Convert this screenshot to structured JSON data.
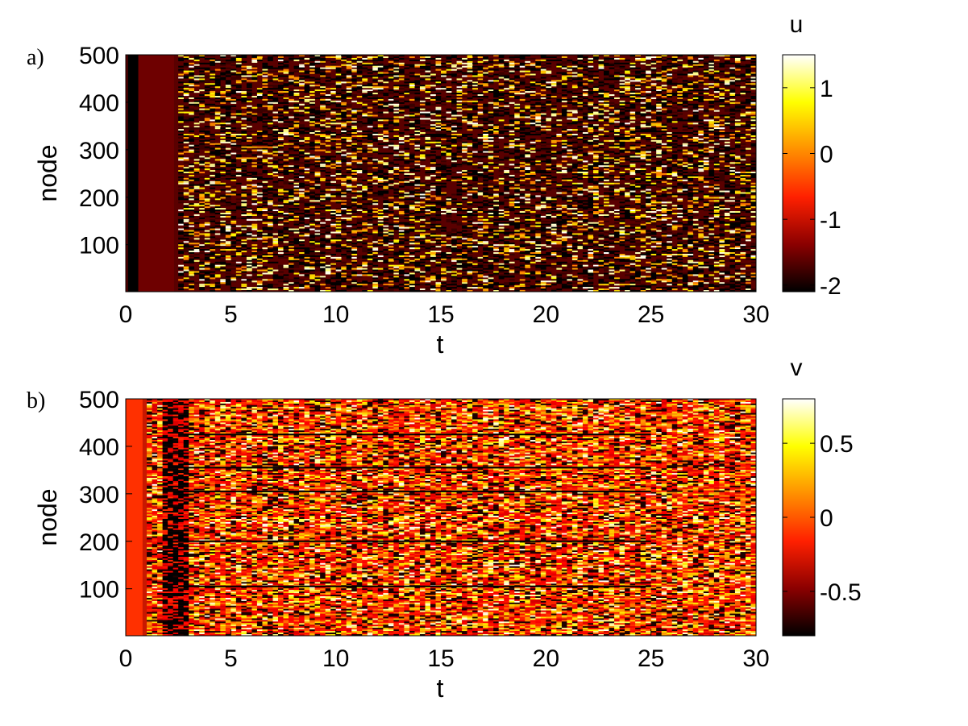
{
  "chart_data": [
    {
      "type": "heatmap",
      "panel_label": "a)",
      "variable": "u",
      "xlabel": "t",
      "ylabel": "node",
      "xlim": [
        0,
        30
      ],
      "ylim": [
        1,
        500
      ],
      "xticks": [
        0,
        5,
        10,
        15,
        20,
        25,
        30
      ],
      "yticks": [
        100,
        200,
        300,
        400,
        500
      ],
      "colorbar": {
        "title": "u",
        "range": [
          -2.1,
          1.5
        ],
        "ticks": [
          1,
          0,
          -1,
          -2
        ],
        "colormap": "hot",
        "stops": [
          "#000000",
          "#8b0000",
          "#ff2000",
          "#ff9000",
          "#ffff00",
          "#ffffff"
        ]
      },
      "pattern": {
        "initial_dark_band_t": [
          0.1,
          0.6
        ],
        "transient_dark_red_t": [
          0.6,
          2.3
        ],
        "regime": "irregular traveling spikes, sparse yellow/white pulses on dark red/black background"
      }
    },
    {
      "type": "heatmap",
      "panel_label": "b)",
      "variable": "v",
      "xlabel": "t",
      "ylabel": "node",
      "xlim": [
        0,
        30
      ],
      "ylim": [
        1,
        500
      ],
      "xticks": [
        0,
        5,
        10,
        15,
        20,
        25,
        30
      ],
      "yticks": [
        100,
        200,
        300,
        400,
        500
      ],
      "colorbar": {
        "title": "v",
        "range": [
          -0.8,
          0.8
        ],
        "ticks": [
          0.5,
          0,
          -0.5
        ],
        "colormap": "hot",
        "stops": [
          "#000000",
          "#8b0000",
          "#ff2000",
          "#ff9000",
          "#ffff00",
          "#ffffff"
        ]
      },
      "pattern": {
        "initial_red_band_t": [
          0,
          0.8
        ],
        "transient_dark_t": [
          1.5,
          3.0
        ],
        "regime": "dense striped orange/red texture with thin dark horizontal lines"
      }
    }
  ]
}
